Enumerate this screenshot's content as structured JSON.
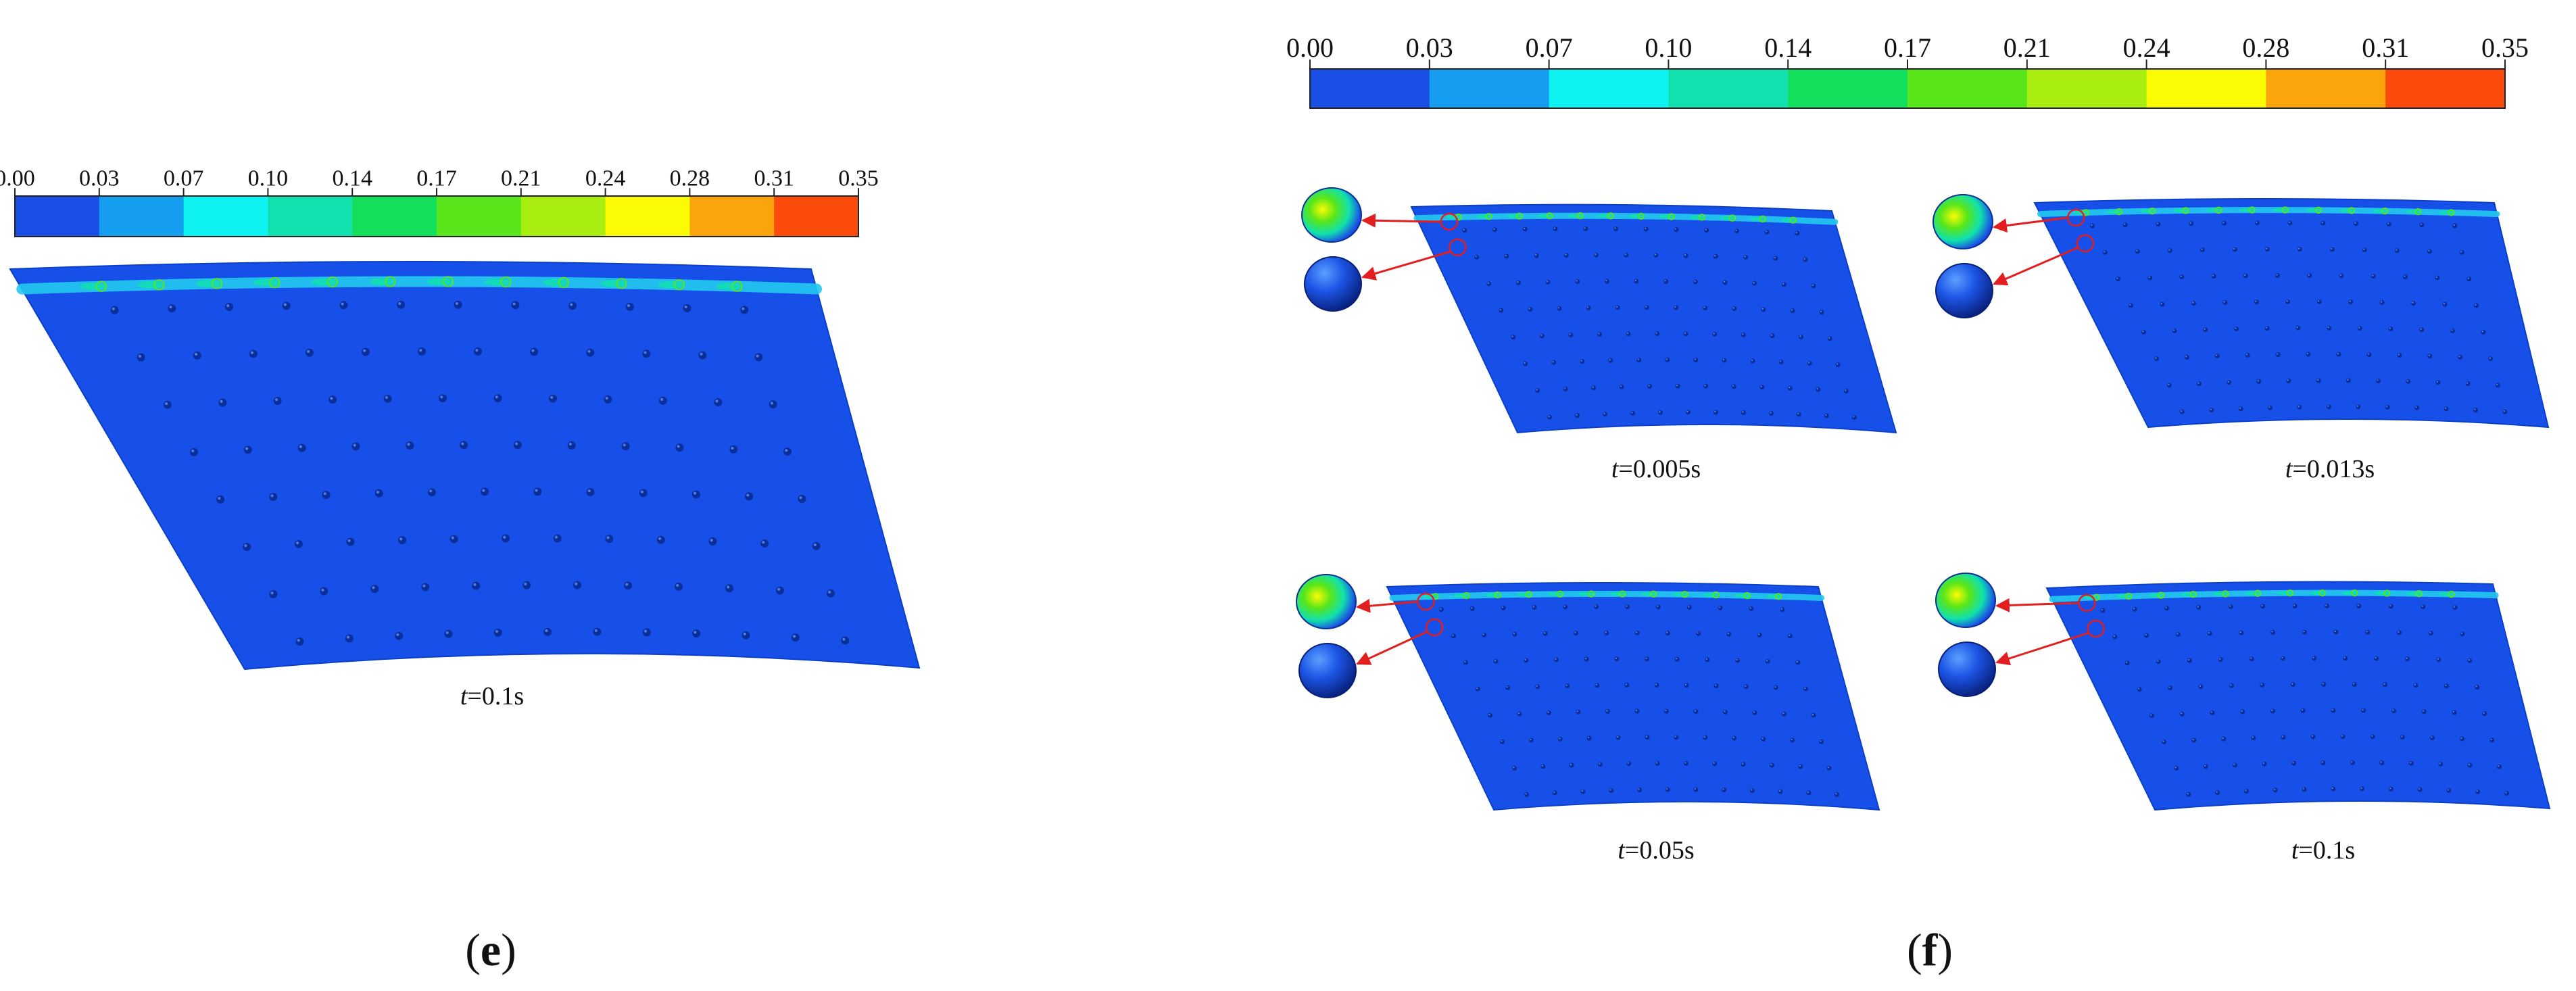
{
  "colorbar": {
    "ticks": [
      "0.00",
      "0.03",
      "0.07",
      "0.10",
      "0.14",
      "0.17",
      "0.21",
      "0.24",
      "0.28",
      "0.31",
      "0.35"
    ],
    "colors": [
      "#1a4fe6",
      "#159ef0",
      "#0ff2f2",
      "#10e1ae",
      "#13df5c",
      "#58e61a",
      "#a9ee10",
      "#fbfb04",
      "#fba40c",
      "#fa4a0c"
    ]
  },
  "panel_e": {
    "label_open": "(",
    "label_letter": "e",
    "label_close": ")",
    "caption": {
      "var": "t",
      "rest": "=0.1s"
    }
  },
  "panel_f": {
    "label_open": "(",
    "label_letter": "f",
    "label_close": ")",
    "captions": [
      {
        "var": "t",
        "rest": "=0.005s"
      },
      {
        "var": "t",
        "rest": "=0.013s"
      },
      {
        "var": "t",
        "rest": "=0.05s"
      },
      {
        "var": "t",
        "rest": "=0.1s"
      }
    ]
  },
  "colors": {
    "plate": "#1650e8",
    "plate_edge": "#0b3fc8",
    "film": "#22c9ee",
    "arrow": "#e31e1e",
    "dimple": "#0a2e9a"
  }
}
